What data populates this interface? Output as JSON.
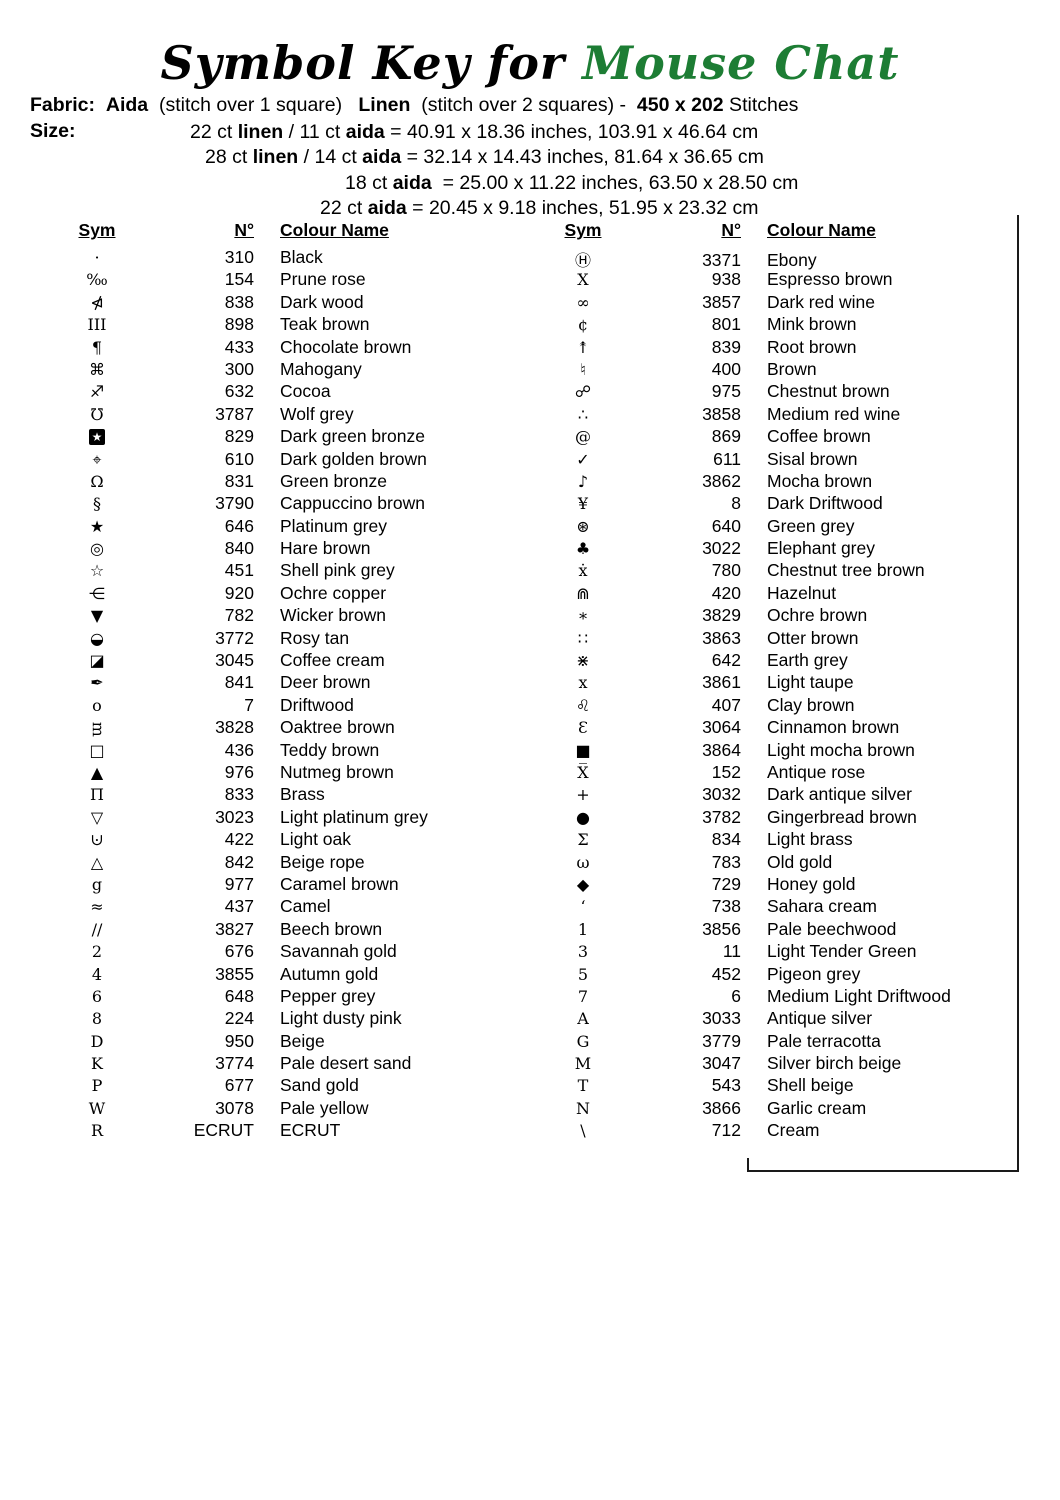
{
  "title": {
    "prefix": "Symbol Key for ",
    "suffix": "Mouse Chat",
    "suffix_color": "#1d7d34"
  },
  "fabric": {
    "segments": [
      {
        "t": "Fabric:",
        "b": true
      },
      {
        "t": "  ",
        "b": false
      },
      {
        "t": "Aida",
        "b": true
      },
      {
        "t": "  (stitch over 1 square)   ",
        "b": false
      },
      {
        "t": "Linen",
        "b": true
      },
      {
        "t": "  (stitch over 2 squares) -  ",
        "b": false
      },
      {
        "t": "450 x 202",
        "b": true
      },
      {
        "t": " Stitches",
        "b": false
      }
    ]
  },
  "size": {
    "label": "Size:",
    "lines": [
      {
        "indent": 190,
        "segments": [
          {
            "t": "22 ct ",
            "b": false
          },
          {
            "t": "linen",
            "b": true
          },
          {
            "t": " / 11 ct ",
            "b": false
          },
          {
            "t": "aida",
            "b": true
          },
          {
            "t": " = 40.91 x 18.36 inches, 103.91 x 46.64 cm",
            "b": false
          }
        ]
      },
      {
        "indent": 205,
        "segments": [
          {
            "t": "28 ct ",
            "b": false
          },
          {
            "t": "linen",
            "b": true
          },
          {
            "t": " / 14 ct ",
            "b": false
          },
          {
            "t": "aida",
            "b": true
          },
          {
            "t": " = 32.14 x 14.43 inches, 81.64 x 36.65 cm",
            "b": false
          }
        ]
      },
      {
        "indent": 345,
        "segments": [
          {
            "t": "18 ct ",
            "b": false
          },
          {
            "t": "aida",
            "b": true
          },
          {
            "t": "  = 25.00 x 11.22 inches, 63.50 x 28.50 cm",
            "b": false
          }
        ]
      },
      {
        "indent": 320,
        "segments": [
          {
            "t": "22 ct ",
            "b": false
          },
          {
            "t": "aida",
            "b": true
          },
          {
            "t": " = 20.45 x 9.18 inches, 51.95 x 23.32 cm",
            "b": false
          }
        ]
      }
    ]
  },
  "table": {
    "headers": {
      "sym": "Sym",
      "num": "N°",
      "name": "Colour Name"
    },
    "left_rows": [
      {
        "s": "·",
        "n": "310",
        "c": "Black"
      },
      {
        "s": "‰",
        "n": "154",
        "c": "Prune rose"
      },
      {
        "s": "⋪",
        "n": "838",
        "c": "Dark wood"
      },
      {
        "s": "III",
        "n": "898",
        "c": "Teak brown"
      },
      {
        "s": "¶",
        "n": "433",
        "c": "Chocolate brown"
      },
      {
        "s": "⌘",
        "n": "300",
        "c": "Mahogany"
      },
      {
        "s": "♐",
        "n": "632",
        "c": "Cocoa"
      },
      {
        "s": "℧",
        "n": "3787",
        "c": "Wolf grey"
      },
      {
        "s": "★",
        "n": "829",
        "c": "Dark green bronze",
        "inv": true
      },
      {
        "s": "⌖",
        "n": "610",
        "c": "Dark golden brown"
      },
      {
        "s": "Ω",
        "n": "831",
        "c": "Green bronze"
      },
      {
        "s": "§",
        "n": "3790",
        "c": "Cappuccino brown"
      },
      {
        "s": "★",
        "n": "646",
        "c": "Platinum grey"
      },
      {
        "s": "◎",
        "n": "840",
        "c": "Hare brown"
      },
      {
        "s": "☆",
        "n": "451",
        "c": "Shell pink grey"
      },
      {
        "s": "⋲",
        "n": "920",
        "c": "Ochre copper"
      },
      {
        "s": "▼",
        "n": "782",
        "c": "Wicker brown"
      },
      {
        "s": "◒",
        "n": "3772",
        "c": "Rosy tan"
      },
      {
        "s": "◪",
        "n": "3045",
        "c": "Coffee cream"
      },
      {
        "s": "✒",
        "n": "841",
        "c": "Deer brown"
      },
      {
        "s": "o",
        "n": "7",
        "c": "Driftwood"
      },
      {
        "s": "ᴟ",
        "n": "3828",
        "c": "Oaktree brown"
      },
      {
        "s": "□",
        "n": "436",
        "c": "Teddy brown"
      },
      {
        "s": "▲",
        "n": "976",
        "c": "Nutmeg brown"
      },
      {
        "s": "Π",
        "n": "833",
        "c": "Brass"
      },
      {
        "s": "▽",
        "n": "3023",
        "c": "Light platinum grey"
      },
      {
        "s": "⊍",
        "n": "422",
        "c": "Light oak"
      },
      {
        "s": "△",
        "n": "842",
        "c": "Beige rope"
      },
      {
        "s": "g",
        "n": "977",
        "c": "Caramel brown"
      },
      {
        "s": "≈",
        "n": "437",
        "c": "Camel"
      },
      {
        "s": "//",
        "n": "3827",
        "c": "Beech brown"
      },
      {
        "s": "2",
        "n": "676",
        "c": "Savannah gold"
      },
      {
        "s": "4",
        "n": "3855",
        "c": "Autumn gold"
      },
      {
        "s": "6",
        "n": "648",
        "c": "Pepper grey"
      },
      {
        "s": "8",
        "n": "224",
        "c": "Light dusty pink"
      },
      {
        "s": "D",
        "n": "950",
        "c": "Beige"
      },
      {
        "s": "K",
        "n": "3774",
        "c": "Pale desert sand"
      },
      {
        "s": "P",
        "n": "677",
        "c": "Sand gold"
      },
      {
        "s": "W",
        "n": "3078",
        "c": "Pale yellow"
      },
      {
        "s": "R",
        "n": "ECRUT",
        "c": "ECRUT"
      }
    ],
    "right_rows": [
      {
        "s": "Ⓗ",
        "n": "3371",
        "c": "Ebony"
      },
      {
        "s": "X",
        "n": "938",
        "c": "Espresso brown"
      },
      {
        "s": "∞",
        "n": "3857",
        "c": "Dark red wine"
      },
      {
        "s": "¢",
        "n": "801",
        "c": "Mink brown"
      },
      {
        "s": "↟",
        "n": "839",
        "c": "Root brown"
      },
      {
        "s": "♮",
        "n": "400",
        "c": "Brown"
      },
      {
        "s": "☍",
        "n": "975",
        "c": "Chestnut brown"
      },
      {
        "s": "∴",
        "n": "3858",
        "c": "Medium red wine"
      },
      {
        "s": "@",
        "n": "869",
        "c": "Coffee brown"
      },
      {
        "s": "✓",
        "n": "611",
        "c": "Sisal brown"
      },
      {
        "s": "♪",
        "n": "3862",
        "c": "Mocha brown"
      },
      {
        "s": "¥",
        "n": "8",
        "c": "Dark Driftwood"
      },
      {
        "s": "⊛",
        "n": "640",
        "c": "Green grey"
      },
      {
        "s": "♣",
        "n": "3022",
        "c": "Elephant grey"
      },
      {
        "s": "ẋ",
        "n": "780",
        "c": "Chestnut tree brown"
      },
      {
        "s": "⋒",
        "n": "420",
        "c": "Hazelnut"
      },
      {
        "s": "∗",
        "n": "3829",
        "c": "Ochre brown"
      },
      {
        "s": "∷",
        "n": "3863",
        "c": "Otter brown"
      },
      {
        "s": "⋇",
        "n": "642",
        "c": "Earth grey"
      },
      {
        "s": "x",
        "n": "3861",
        "c": "Light taupe"
      },
      {
        "s": "♌",
        "n": "407",
        "c": "Clay brown"
      },
      {
        "s": "Ɛ",
        "n": "3064",
        "c": "Cinnamon brown"
      },
      {
        "s": "■",
        "n": "3864",
        "c": "Light mocha brown"
      },
      {
        "s": "X̅",
        "n": "152",
        "c": "Antique rose"
      },
      {
        "s": "+",
        "n": "3032",
        "c": "Dark antique silver"
      },
      {
        "s": "●",
        "n": "3782",
        "c": "Gingerbread brown"
      },
      {
        "s": "Σ",
        "n": "834",
        "c": "Light brass"
      },
      {
        "s": "ω",
        "n": "783",
        "c": "Old gold"
      },
      {
        "s": "◆",
        "n": "729",
        "c": "Honey gold"
      },
      {
        "s": "‘",
        "n": "738",
        "c": "Sahara cream"
      },
      {
        "s": "1",
        "n": "3856",
        "c": "Pale beechwood"
      },
      {
        "s": "3",
        "n": "11",
        "c": "Light Tender Green"
      },
      {
        "s": "5",
        "n": "452",
        "c": "Pigeon grey"
      },
      {
        "s": "7",
        "n": "6",
        "c": "Medium Light Driftwood"
      },
      {
        "s": "A",
        "n": "3033",
        "c": "Antique silver"
      },
      {
        "s": "G",
        "n": "3779",
        "c": "Pale terracotta"
      },
      {
        "s": "M",
        "n": "3047",
        "c": "Silver birch beige"
      },
      {
        "s": "T",
        "n": "543",
        "c": "Shell beige"
      },
      {
        "s": "N",
        "n": "3866",
        "c": "Garlic cream"
      },
      {
        "s": "\\",
        "n": "712",
        "c": "Cream"
      }
    ]
  }
}
